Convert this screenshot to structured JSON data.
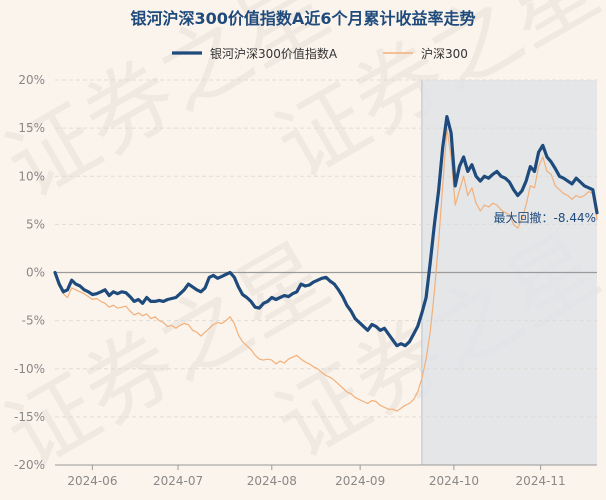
{
  "chart_data": {
    "type": "line",
    "title": "银河沪深300价值指数A近6个月累计收益率走势",
    "series": [
      {
        "name": "银河沪深300价值指数A",
        "color": "#1e4a7c",
        "values": [
          0.0,
          -1.2,
          -2.0,
          -1.8,
          -0.8,
          -1.2,
          -1.4,
          -1.8,
          -2.0,
          -2.3,
          -2.2,
          -2.0,
          -1.8,
          -2.4,
          -2.0,
          -2.2,
          -2.0,
          -2.1,
          -2.5,
          -3.0,
          -2.8,
          -3.2,
          -2.6,
          -3.0,
          -3.0,
          -2.9,
          -3.0,
          -2.8,
          -2.7,
          -2.6,
          -2.2,
          -1.8,
          -1.2,
          -1.5,
          -1.8,
          -2.0,
          -1.6,
          -0.5,
          -0.3,
          -0.6,
          -0.4,
          -0.2,
          0.0,
          -0.5,
          -1.5,
          -2.3,
          -2.6,
          -3.0,
          -3.6,
          -3.7,
          -3.2,
          -3.0,
          -2.6,
          -2.8,
          -2.6,
          -2.4,
          -2.5,
          -2.2,
          -2.0,
          -1.2,
          -1.4,
          -1.3,
          -1.0,
          -0.8,
          -0.6,
          -0.5,
          -0.9,
          -1.2,
          -1.8,
          -2.5,
          -3.4,
          -4.0,
          -4.8,
          -5.2,
          -5.6,
          -6.0,
          -5.4,
          -5.6,
          -6.0,
          -5.8,
          -6.4,
          -7.0,
          -7.6,
          -7.4,
          -7.6,
          -7.2,
          -6.4,
          -5.6,
          -4.2,
          -2.6,
          1.0,
          5.0,
          8.5,
          13.0,
          16.2,
          14.5,
          9.0,
          11.0,
          12.0,
          10.5,
          11.2,
          10.0,
          9.5,
          10.0,
          9.8,
          10.2,
          10.5,
          10.0,
          9.8,
          9.4,
          8.6,
          8.0,
          8.5,
          9.5,
          11.0,
          10.5,
          12.5,
          13.2,
          12.0,
          11.5,
          10.8,
          10.0,
          9.8,
          9.5,
          9.2,
          9.8,
          9.4,
          9.0,
          8.8,
          8.6,
          6.2
        ],
        "max_drawdown_text": "最大回撤：-8.44%"
      },
      {
        "name": "沪深300",
        "color": "#f2b07a",
        "values": [
          0.0,
          -1.4,
          -2.2,
          -2.6,
          -1.6,
          -1.8,
          -2.0,
          -2.2,
          -2.5,
          -2.8,
          -2.7,
          -3.0,
          -3.2,
          -3.6,
          -3.4,
          -3.7,
          -3.6,
          -3.5,
          -4.0,
          -4.4,
          -4.2,
          -4.5,
          -4.3,
          -4.8,
          -4.6,
          -5.0,
          -5.2,
          -5.6,
          -5.5,
          -5.8,
          -5.5,
          -5.3,
          -5.4,
          -6.0,
          -6.2,
          -6.6,
          -6.2,
          -5.8,
          -5.4,
          -5.2,
          -5.3,
          -5.0,
          -4.6,
          -5.3,
          -6.5,
          -7.2,
          -7.6,
          -8.0,
          -8.6,
          -9.0,
          -9.1,
          -9.0,
          -9.1,
          -9.5,
          -9.2,
          -9.4,
          -9.0,
          -8.8,
          -8.6,
          -9.0,
          -9.3,
          -9.5,
          -9.8,
          -10.0,
          -10.4,
          -10.7,
          -10.9,
          -11.2,
          -11.6,
          -12.0,
          -12.4,
          -12.6,
          -13.0,
          -13.2,
          -13.4,
          -13.6,
          -13.3,
          -13.4,
          -13.8,
          -14.0,
          -14.2,
          -14.2,
          -14.4,
          -14.1,
          -13.8,
          -13.6,
          -13.2,
          -12.4,
          -11.0,
          -9.0,
          -6.2,
          -2.0,
          3.2,
          9.0,
          15.0,
          12.0,
          7.0,
          8.5,
          10.0,
          8.0,
          8.8,
          7.2,
          6.4,
          7.0,
          6.8,
          7.2,
          7.0,
          6.5,
          6.2,
          6.0,
          5.0,
          4.6,
          5.6,
          7.0,
          9.0,
          8.8,
          11.0,
          12.0,
          10.5,
          10.2,
          9.0,
          8.6,
          8.2,
          8.0,
          7.6,
          8.0,
          7.8,
          8.0,
          8.4,
          8.2,
          5.5
        ]
      }
    ],
    "x_tick_labels": [
      "2024-06",
      "2024-07",
      "2024-08",
      "2024-09",
      "2024-10",
      "2024-11"
    ],
    "x_tick_positions": [
      0.069,
      0.227,
      0.4,
      0.563,
      0.736,
      0.896
    ],
    "shade_from_index": 88,
    "ylim": [
      -20,
      20
    ],
    "y_ticks": [
      -20,
      -15,
      -10,
      -5,
      0,
      5,
      10,
      15,
      20
    ],
    "y_tick_labels": [
      "-20%",
      "-15%",
      "-10%",
      "-5%",
      "0%",
      "5%",
      "10%",
      "15%",
      "20%"
    ],
    "grid": true,
    "legend_position": "top",
    "watermark": "证券之星"
  }
}
